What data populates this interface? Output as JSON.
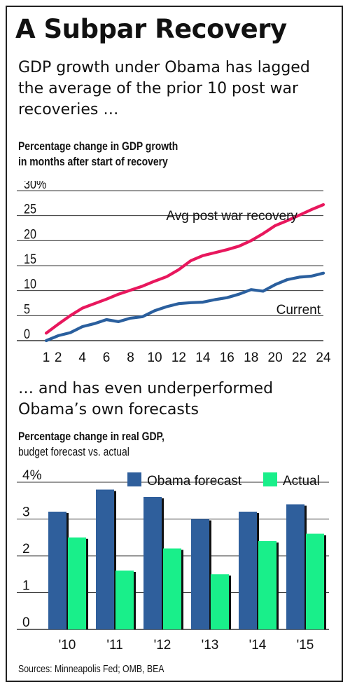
{
  "headline": "A Subpar Recovery",
  "subtitle": "GDP growth under Obama has lagged the average of the prior 10 post war recoveries …",
  "section2": "… and has even underperformed Obama’s own forecasts",
  "source": "Sources: Minneapolis Fed; OMB, BEA",
  "colors": {
    "avg_line": "#e8175d",
    "current_line": "#2a5f9e",
    "forecast_bar": "#2f5f9c",
    "actual_bar": "#19ef8a"
  },
  "chart_data": [
    {
      "type": "line",
      "title": "Percentage change in GDP growth",
      "subtitle": "in months after start of recovery",
      "x_tick_labels": [
        "1",
        "2",
        "4",
        "6",
        "8",
        "10",
        "12",
        "14",
        "16",
        "18",
        "20",
        "22",
        "24"
      ],
      "y_tick_labels": [
        "0",
        "5",
        "10",
        "15",
        "20",
        "25",
        "30%"
      ],
      "ylim": [
        0,
        30
      ],
      "xlim": [
        1,
        24
      ],
      "grid": true,
      "x": [
        1,
        2,
        3,
        4,
        5,
        6,
        7,
        8,
        9,
        10,
        11,
        12,
        13,
        14,
        15,
        16,
        17,
        18,
        19,
        20,
        21,
        22,
        23,
        24
      ],
      "series": [
        {
          "name": "Avg post war recovery",
          "values": [
            1.5,
            3.3,
            5.0,
            6.5,
            7.4,
            8.3,
            9.3,
            10.1,
            10.9,
            11.9,
            12.8,
            14.2,
            16.0,
            17.0,
            17.6,
            18.2,
            18.9,
            20.0,
            21.4,
            23.0,
            24.0,
            25.1,
            26.2,
            27.2
          ]
        },
        {
          "name": "Current",
          "values": [
            0.0,
            1.0,
            1.6,
            2.8,
            3.4,
            4.2,
            3.8,
            4.5,
            4.8,
            6.0,
            6.8,
            7.4,
            7.6,
            7.7,
            8.2,
            8.6,
            9.3,
            10.2,
            9.9,
            11.2,
            12.2,
            12.7,
            12.9,
            13.5
          ]
        }
      ]
    },
    {
      "type": "bar",
      "title": "Percentage change in real GDP,",
      "subtitle": "budget forecast vs. actual",
      "categories": [
        "'10",
        "'11",
        "'12",
        "'13",
        "'14",
        "'15"
      ],
      "y_tick_labels": [
        "0",
        "1",
        "2",
        "3",
        "4%"
      ],
      "ylim": [
        0,
        4
      ],
      "grid": true,
      "legend": "top-right",
      "series": [
        {
          "name": "Obama forecast",
          "values": [
            3.2,
            3.8,
            3.6,
            3.0,
            3.2,
            3.4
          ]
        },
        {
          "name": "Actual",
          "values": [
            2.5,
            1.6,
            2.2,
            1.5,
            2.4,
            2.6
          ]
        }
      ]
    }
  ]
}
